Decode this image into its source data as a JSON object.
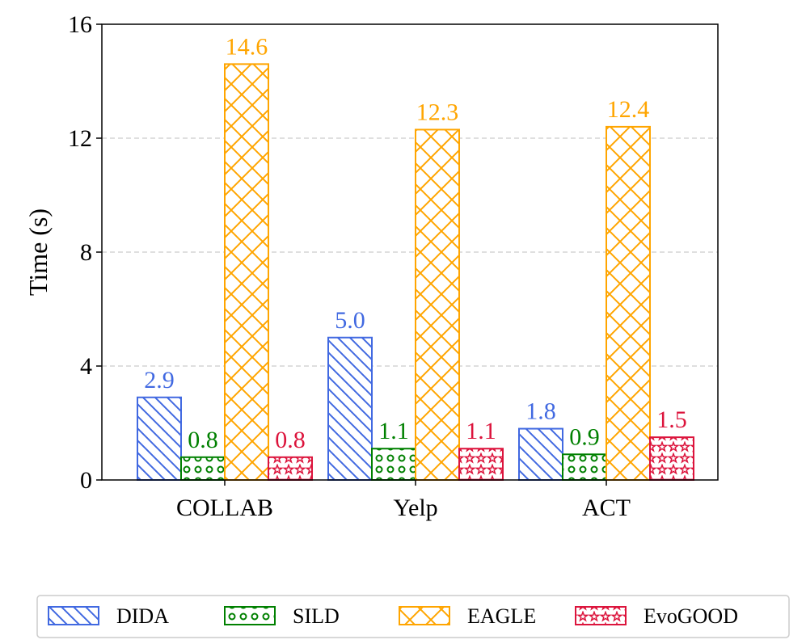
{
  "chart_data": {
    "type": "bar",
    "title": "",
    "xlabel": "",
    "ylabel": "Time (s)",
    "ylim": [
      0,
      16
    ],
    "yticks": [
      0,
      4,
      8,
      12,
      16
    ],
    "grid": "y dashed",
    "legend_position": "bottom",
    "categories": [
      "COLLAB",
      "Yelp",
      "ACT"
    ],
    "series": [
      {
        "name": "DIDA",
        "color": "#4169E1",
        "pattern": "diagonal-hatch",
        "values": [
          2.9,
          5.0,
          1.8
        ],
        "labels": [
          "2.9",
          "5.0",
          "1.8"
        ]
      },
      {
        "name": "SILD",
        "color": "#008000",
        "pattern": "dots",
        "values": [
          0.8,
          1.1,
          0.9
        ],
        "labels": [
          "0.8",
          "1.1",
          "0.9"
        ]
      },
      {
        "name": "EAGLE",
        "color": "#FFA500",
        "pattern": "cross-hatch",
        "values": [
          14.6,
          12.3,
          12.4
        ],
        "labels": [
          "14.6",
          "12.3",
          "12.4"
        ]
      },
      {
        "name": "EvoGOOD",
        "color": "#DC143C",
        "pattern": "stars",
        "values": [
          0.8,
          1.1,
          1.5
        ],
        "labels": [
          "0.8",
          "1.1",
          "1.5"
        ]
      }
    ]
  }
}
